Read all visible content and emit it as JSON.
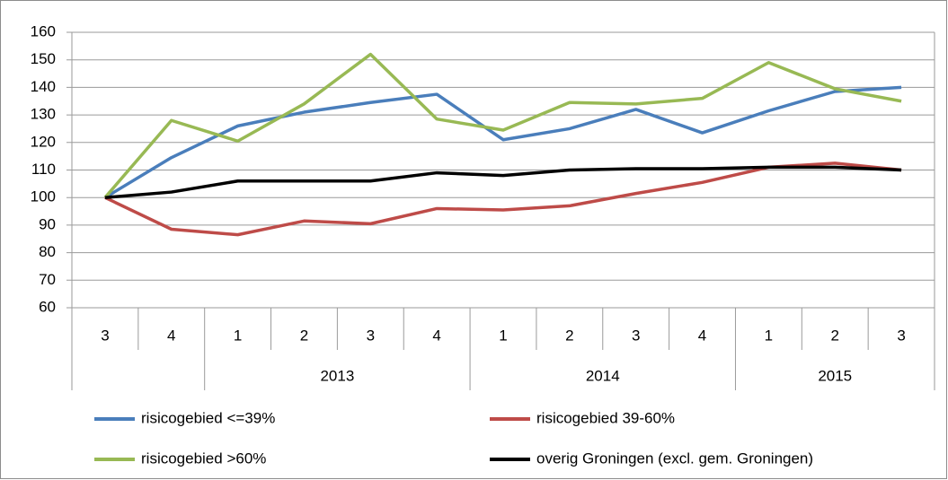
{
  "chart_data": {
    "type": "line",
    "categories": [
      "3",
      "4",
      "1",
      "2",
      "3",
      "4",
      "1",
      "2",
      "3",
      "4",
      "1",
      "2",
      "3"
    ],
    "years": [
      null,
      null,
      "2013",
      "2013",
      "2013",
      "2013",
      "2014",
      "2014",
      "2014",
      "2014",
      "2015",
      "2015",
      "2015"
    ],
    "series": [
      {
        "name": "risicogebied <=39%",
        "color": "#4a7ebb",
        "values": [
          100,
          114.5,
          126,
          131,
          134.5,
          137.5,
          121,
          125,
          132,
          123.5,
          131.5,
          138.5,
          140
        ]
      },
      {
        "name": "risicogebied 39-60%",
        "color": "#be4b48",
        "values": [
          100,
          88.5,
          86.5,
          91.5,
          90.5,
          96,
          95.5,
          97,
          101.5,
          105.5,
          111,
          112.5,
          110
        ]
      },
      {
        "name": "risicogebied >60%",
        "color": "#98b954",
        "values": [
          100,
          128,
          120.5,
          134,
          152,
          128.5,
          124.5,
          134.5,
          134,
          136,
          149,
          139.5,
          135
        ]
      },
      {
        "name": "overig Groningen (excl. gem. Groningen)",
        "color": "#000000",
        "values": [
          100,
          102,
          106,
          106,
          106,
          109,
          108,
          110,
          110.5,
          110.5,
          111,
          111,
          110
        ]
      }
    ],
    "ylim": [
      60,
      160
    ],
    "yticks": [
      60,
      70,
      80,
      90,
      100,
      110,
      120,
      130,
      140,
      150,
      160
    ],
    "grid": true
  }
}
